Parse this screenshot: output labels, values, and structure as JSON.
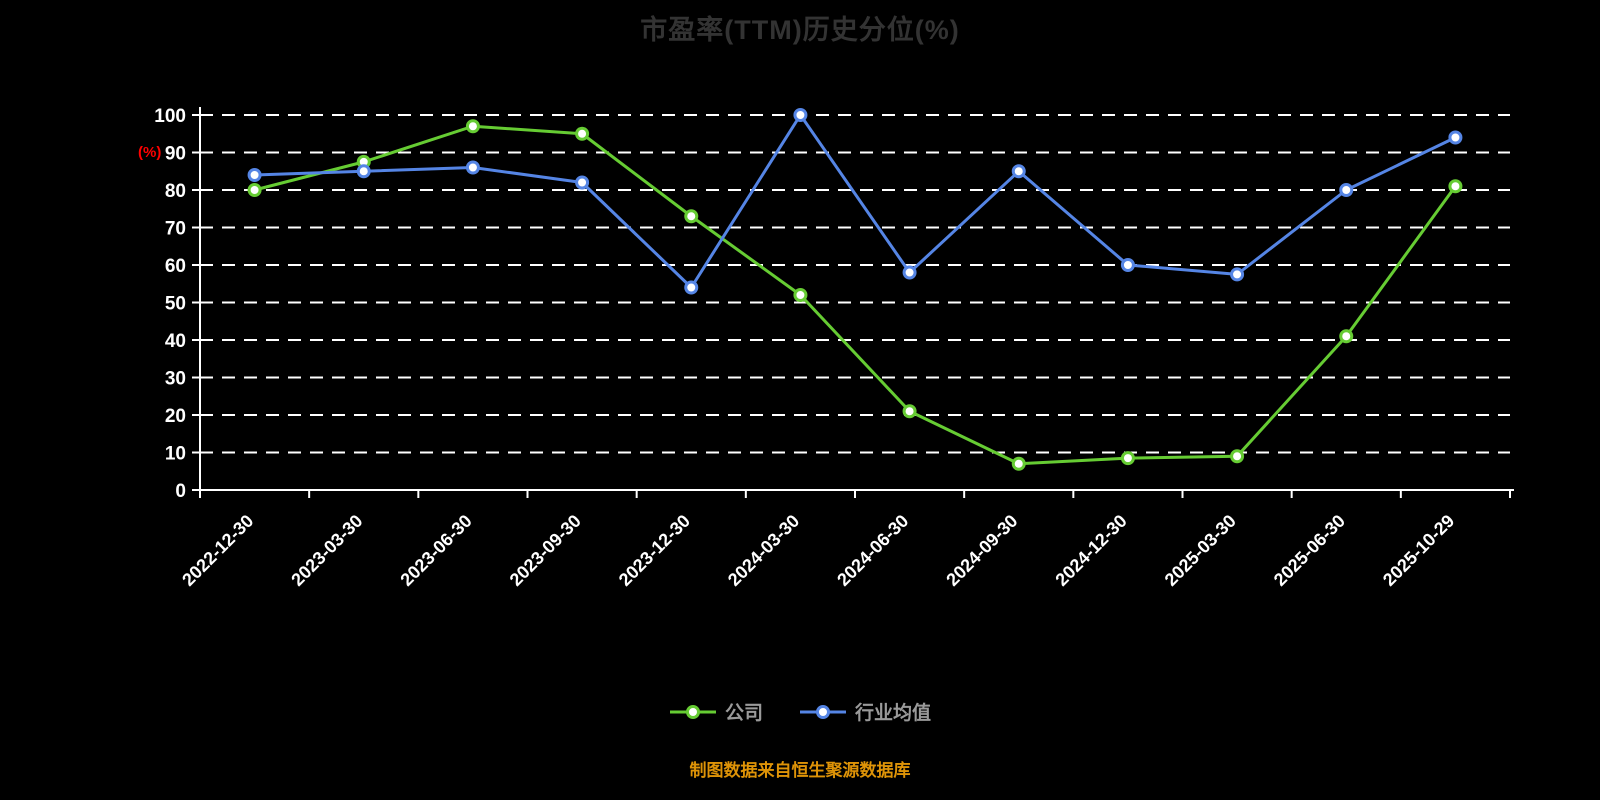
{
  "chart_data": {
    "type": "line",
    "title": "市盈率(TTM)历史分位(%)",
    "ylabel": "(%)",
    "xlabel": "",
    "ylim": [
      0,
      100
    ],
    "y_tick_step": 10,
    "grid": "horizontal-dashed",
    "legend_position": "bottom",
    "categories": [
      "2022-12-30",
      "2023-03-30",
      "2023-06-30",
      "2023-09-30",
      "2023-12-30",
      "2024-03-30",
      "2024-06-30",
      "2024-09-30",
      "2024-12-30",
      "2025-03-30",
      "2025-06-30",
      "2025-10-29"
    ],
    "series": [
      {
        "id": "company",
        "name": "公司",
        "color": "#66cc33",
        "values": [
          80,
          87.5,
          97,
          95,
          73,
          52,
          21,
          7,
          8.5,
          9,
          41,
          81
        ]
      },
      {
        "id": "industry-average",
        "name": "行业均值",
        "color": "#5585e5",
        "values": [
          84,
          85,
          86,
          82,
          54,
          100,
          58,
          85,
          60,
          57.5,
          80,
          94
        ]
      }
    ],
    "colors": {
      "background": "#000000",
      "title": "#333333",
      "axis": "#ffffff",
      "ylabel": "#ff0000",
      "legend_text": "#9a9a9a",
      "footer": "#de9307",
      "marker_fill": "#ffffff"
    }
  },
  "footer": {
    "note": "制图数据来自恒生聚源数据库"
  }
}
